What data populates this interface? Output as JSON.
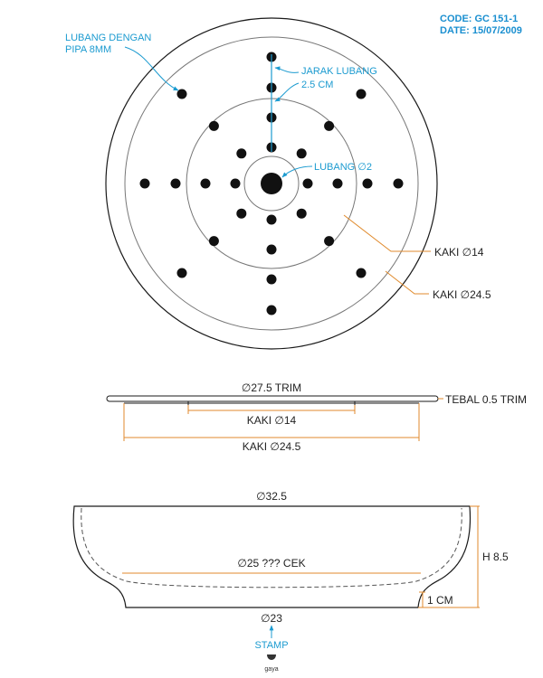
{
  "header": {
    "code": "CODE: GC 151-1",
    "date": "DATE: 15/07/2009"
  },
  "top_view": {
    "note_pipe": [
      "LUBANG DENGAN",
      "PIPA 8MM"
    ],
    "note_spacing": [
      "JARAK LUBANG",
      "2.5 CM"
    ],
    "note_center_hole": "LUBANG ∅2",
    "note_foot_inner": "KAKI ∅14",
    "note_foot_outer": "KAKI ∅24.5"
  },
  "side_view": {
    "trim_diameter": "∅27.5 TRIM",
    "trim_thickness": "TEBAL 0.5 TRIM",
    "foot_inner": "KAKI ∅14",
    "foot_outer": "KAKI ∅24.5"
  },
  "section_view": {
    "top_diameter": "∅32.5",
    "inner_diameter": "∅25 ??? CEK",
    "height": "H 8.5",
    "foot_height": "1 CM",
    "base_diameter": "∅23",
    "stamp": "STAMP",
    "logo": "gaya"
  },
  "colors": {
    "outline": "#1a1a1a",
    "dimension_line": "#e08a2c",
    "callout": "#1c9bd0",
    "header": "#1a8fd0"
  }
}
